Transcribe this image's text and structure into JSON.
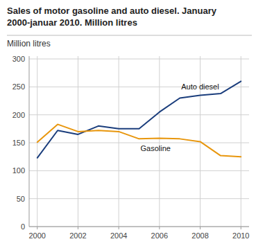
{
  "chart_data": {
    "type": "line",
    "title": "Sales of motor gasoline and auto diesel. January\n2000-januar 2010. Million litres",
    "y_label": "Million litres",
    "x": [
      2000,
      2001,
      2002,
      2003,
      2004,
      2005,
      2006,
      2007,
      2008,
      2009,
      2010
    ],
    "series": [
      {
        "name": "Auto diesel",
        "color": "#1a3d7c",
        "values": [
          123,
          172,
          165,
          180,
          175,
          175,
          205,
          230,
          235,
          238,
          260
        ]
      },
      {
        "name": "Gasoline",
        "color": "#e8960c",
        "values": [
          151,
          183,
          170,
          172,
          170,
          157,
          158,
          157,
          152,
          127,
          125
        ]
      }
    ],
    "xlim": [
      1999.6,
      2010.4
    ],
    "ylim": [
      0,
      305
    ],
    "xticks": [
      2000,
      2002,
      2004,
      2006,
      2008,
      2010
    ],
    "yticks": [
      0,
      50,
      100,
      150,
      200,
      250,
      300
    ],
    "grid": true,
    "background_color": "#ffffff"
  }
}
